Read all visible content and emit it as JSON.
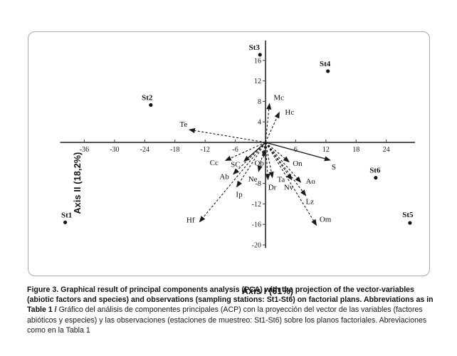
{
  "caption": {
    "english_bold": "Figure 3. Graphical result of principal components analysis (PCA) with the projection of the vector-variables (abiotic factors and species) and observations (sampling stations: St1-St6) on factorial plans. Abbreviations as in Table 1 / ",
    "spanish": "Gráfico del análisis de componentes principales (ACP) con la proyección del vector de las variables (factores abióticos y especies) y las observaciones (estaciones de muestreo: St1-St6) sobre los planos factoriales. Abreviaciones como en la Tabla 1"
  },
  "chart_data": {
    "type": "scatter",
    "subtype": "pca-biplot",
    "title": "",
    "xlabel": "Axis I (61%)",
    "ylabel": "Axis II (18,2%)",
    "xlim": [
      -40.8,
      29.7
    ],
    "ylim": [
      -20.6,
      19.9
    ],
    "x_ticks": [
      -36,
      -30,
      -24,
      -18,
      -12,
      -6,
      6,
      12,
      18,
      24
    ],
    "y_ticks": [
      16,
      12,
      8,
      4,
      -8,
      -12,
      -16,
      -20
    ],
    "grid": false,
    "legend": "none",
    "stations": [
      {
        "name": "St1",
        "x": -39.8,
        "y": -15.6,
        "lx": 2,
        "ly": -7
      },
      {
        "name": "St2",
        "x": -22.8,
        "y": 7.3,
        "lx": -5,
        "ly": -7
      },
      {
        "name": "St3",
        "x": -1.1,
        "y": 17.1,
        "lx": -8,
        "ly": -7
      },
      {
        "name": "St4",
        "x": 12.4,
        "y": 13.9,
        "lx": -4,
        "ly": -7
      },
      {
        "name": "St5",
        "x": 28.7,
        "y": -15.7,
        "lx": -3,
        "ly": -8
      },
      {
        "name": "St6",
        "x": 21.9,
        "y": -6.9,
        "lx": -1,
        "ly": -7
      }
    ],
    "vectors": [
      {
        "name": "Mc",
        "x": 0.8,
        "y": 7.7,
        "style": "dashed",
        "lx": 13,
        "ly": -4
      },
      {
        "name": "Hc",
        "x": 2.8,
        "y": 6.0,
        "style": "dashed",
        "lx": 14,
        "ly": 4
      },
      {
        "name": "Te",
        "x": -15.3,
        "y": 2.5,
        "style": "dashed",
        "lx": -7,
        "ly": -4
      },
      {
        "name": "Cc",
        "x": -8.1,
        "y": -3.6,
        "style": "dashed",
        "lx": -15,
        "ly": 6
      },
      {
        "name": "SC",
        "x": -4.4,
        "y": -3.8,
        "style": "solid",
        "lx": -11,
        "ly": 7
      },
      {
        "name": "Ob",
        "x": -0.4,
        "y": -3.0,
        "style": "dashed",
        "lx": -6,
        "ly": 11
      },
      {
        "name": "On",
        "x": 4.8,
        "y": -3.9,
        "style": "dashed",
        "lx": 11,
        "ly": 5
      },
      {
        "name": "S",
        "x": 13.0,
        "y": -3.5,
        "style": "solid",
        "lx": 4,
        "ly": 13
      },
      {
        "name": "Ab",
        "x": -6.5,
        "y": -6.3,
        "style": "dashed",
        "lx": -12,
        "ly": 6
      },
      {
        "name": "Ne",
        "x": -1.4,
        "y": -5.8,
        "style": "dashed",
        "lx": -8,
        "ly": 13
      },
      {
        "name": "Ta",
        "x": 1.4,
        "y": -7.0,
        "style": "dashed",
        "lx": 12,
        "ly": 5
      },
      {
        "name": "Dr",
        "x": 0.5,
        "y": -7.4,
        "style": "dashed",
        "lx": 6,
        "ly": 13
      },
      {
        "name": "Nv",
        "x": 5.3,
        "y": -7.4,
        "style": "dashed",
        "lx": -5,
        "ly": 13
      },
      {
        "name": "Ao",
        "x": 7.1,
        "y": -7.9,
        "style": "dashed",
        "lx": 13,
        "ly": 1
      },
      {
        "name": "Ip",
        "x": -5.8,
        "y": -8.8,
        "style": "dashed",
        "lx": 4,
        "ly": 13
      },
      {
        "name": "Lz",
        "x": 8.1,
        "y": -10.5,
        "style": "dashed",
        "lx": 5,
        "ly": 11
      },
      {
        "name": "Hf",
        "x": -13.2,
        "y": -15.6,
        "style": "dashed",
        "lx": -12,
        "ly": 0
      },
      {
        "name": "Om",
        "x": 10.2,
        "y": -16.3,
        "style": "dashed",
        "lx": 12,
        "ly": -6
      }
    ]
  },
  "colors": {
    "axis": "#555555",
    "ink": "#1a1a1a",
    "panel_border": "#a9a9a9",
    "background": "#ffffff"
  }
}
